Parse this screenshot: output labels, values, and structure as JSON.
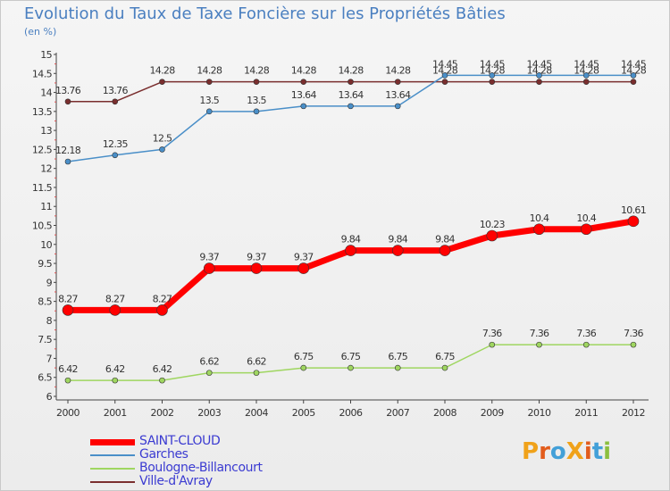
{
  "title": "Evolution du Taux de Taxe Foncière sur les Propriétés Bâties",
  "unit": "(en %)",
  "logo": {
    "text": "ProXiti",
    "letters": [
      "P",
      "r",
      "o",
      "X",
      "i",
      "t",
      "i"
    ],
    "colors": [
      "#f0a21a",
      "#e25c1c",
      "#43a0d8",
      "#f0a21a",
      "#e25c1c",
      "#43a0d8",
      "#8cbf3f"
    ]
  },
  "chart_data": {
    "type": "line",
    "x": [
      "2000",
      "2001",
      "2002",
      "2003",
      "2004",
      "2005",
      "2006",
      "2007",
      "2008",
      "2009",
      "2010",
      "2011",
      "2012"
    ],
    "ylim": [
      6,
      15
    ],
    "yticks": [
      "6",
      "6.5",
      "7",
      "7.5",
      "8",
      "8.5",
      "9",
      "9.5",
      "10",
      "10.5",
      "11",
      "11.5",
      "12",
      "12.5",
      "13",
      "13.5",
      "14",
      "14.5",
      "15"
    ],
    "grid": false,
    "legend_position": "bottom-left",
    "series": [
      {
        "name": "Ville-d'Avray",
        "color": "#7a2e2e",
        "values": [
          13.76,
          13.76,
          14.28,
          14.28,
          14.28,
          14.28,
          14.28,
          14.28,
          14.28,
          14.28,
          14.28,
          14.28,
          14.28
        ],
        "labels": [
          "13.76",
          "13.76",
          "14.28",
          "14.28",
          "14.28",
          "14.28",
          "14.28",
          "14.28",
          "14.28",
          "14.28",
          "14.28",
          "14.28",
          "14.28"
        ]
      },
      {
        "name": "Garches",
        "color": "#4a8fc8",
        "values": [
          12.18,
          12.35,
          12.5,
          13.5,
          13.5,
          13.64,
          13.64,
          13.64,
          14.45,
          14.45,
          14.45,
          14.45,
          14.45
        ],
        "labels": [
          "12.18",
          "12.35",
          "12.5",
          "13.5",
          "13.5",
          "13.64",
          "13.64",
          "13.64",
          "14.45",
          "14.45",
          "14.45",
          "14.45",
          "14.45"
        ]
      },
      {
        "name": "Boulogne-Billancourt",
        "color": "#9fd660",
        "values": [
          6.42,
          6.42,
          6.42,
          6.62,
          6.62,
          6.75,
          6.75,
          6.75,
          6.75,
          7.36,
          7.36,
          7.36,
          7.36
        ],
        "labels": [
          "6.42",
          "6.42",
          "6.42",
          "6.62",
          "6.62",
          "6.75",
          "6.75",
          "6.75",
          "6.75",
          "7.36",
          "7.36",
          "7.36",
          "7.36"
        ]
      },
      {
        "name": "SAINT-CLOUD",
        "color": "#ff0000",
        "values": [
          8.27,
          8.27,
          8.27,
          9.37,
          9.37,
          9.37,
          9.84,
          9.84,
          9.84,
          10.23,
          10.4,
          10.4,
          10.61
        ],
        "labels": [
          "8.27",
          "8.27",
          "8.27",
          "9.37",
          "9.37",
          "9.37",
          "9.84",
          "9.84",
          "9.84",
          "10.23",
          "10.4",
          "10.4",
          "10.61"
        ]
      }
    ]
  },
  "legend": [
    {
      "label": "SAINT-CLOUD",
      "color": "#ff0000"
    },
    {
      "label": "Garches",
      "color": "#4a8fc8"
    },
    {
      "label": "Boulogne-Billancourt",
      "color": "#9fd660"
    },
    {
      "label": "Ville-d'Avray",
      "color": "#7a2e2e"
    }
  ]
}
